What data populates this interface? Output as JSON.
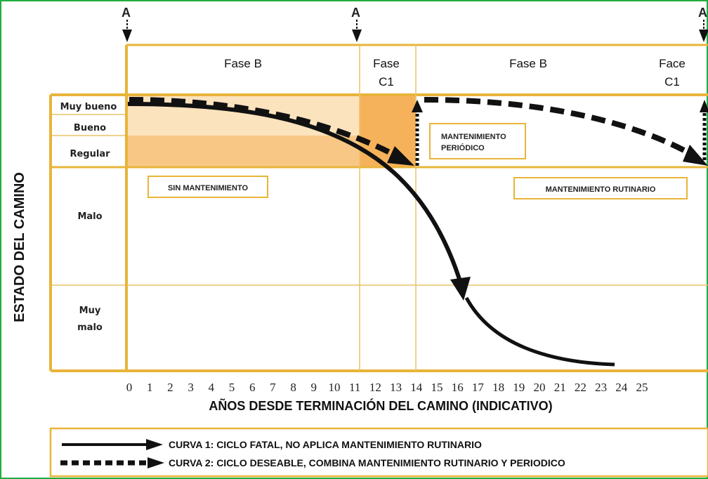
{
  "colors": {
    "frame_border": "#1fae3c",
    "grid_gold": "#e8b43a",
    "grid_thin": "#e8c46a",
    "zone_light": "#fbe3bd",
    "zone_mid": "#f8c785",
    "zone_dark": "#f6b25a",
    "curve": "#111111"
  },
  "markers": [
    "A",
    "A",
    "A"
  ],
  "phases": [
    {
      "line1": "Fase B",
      "line2": ""
    },
    {
      "line1": "Fase",
      "line2": "C1"
    },
    {
      "line1": "Fase B",
      "line2": ""
    },
    {
      "line1": "Face",
      "line2": "C1"
    }
  ],
  "levels": [
    {
      "line1": "Muy bueno",
      "line2": ""
    },
    {
      "line1": "Bueno",
      "line2": ""
    },
    {
      "line1": "Regular",
      "line2": ""
    },
    {
      "line1": "Malo",
      "line2": ""
    },
    {
      "line1": "Muy",
      "line2": "malo"
    }
  ],
  "y_axis_label": "ESTADO DEL CAMINO",
  "x_axis_label": "AÑOS DESDE TERMINACIÓN DEL CAMINO (INDICATIVO)",
  "x_ticks": [
    "0",
    "1",
    "2",
    "3",
    "4",
    "5",
    "6",
    "7",
    "8",
    "9",
    "10",
    "11",
    "12",
    "13",
    "14",
    "15",
    "16",
    "17",
    "18",
    "19",
    "20",
    "21",
    "22",
    "23",
    "24",
    "25"
  ],
  "boxes": {
    "sin_mantenimiento": "SIN MANTENIMIENTO",
    "mantenimiento_periodico": [
      "MANTENIMIENTO",
      "PERIÓDICO"
    ],
    "mantenimiento_rutinario": "MANTENIMIENTO RUTINARIO"
  },
  "legend": {
    "curva1": "CURVA 1: CICLO FATAL, NO APLICA MANTENIMIENTO RUTINARIO",
    "curva2": "CURVA 2: CICLO DESEABLE, COMBINA MANTENIMIENTO RUTINARIO Y PERIODICO"
  }
}
